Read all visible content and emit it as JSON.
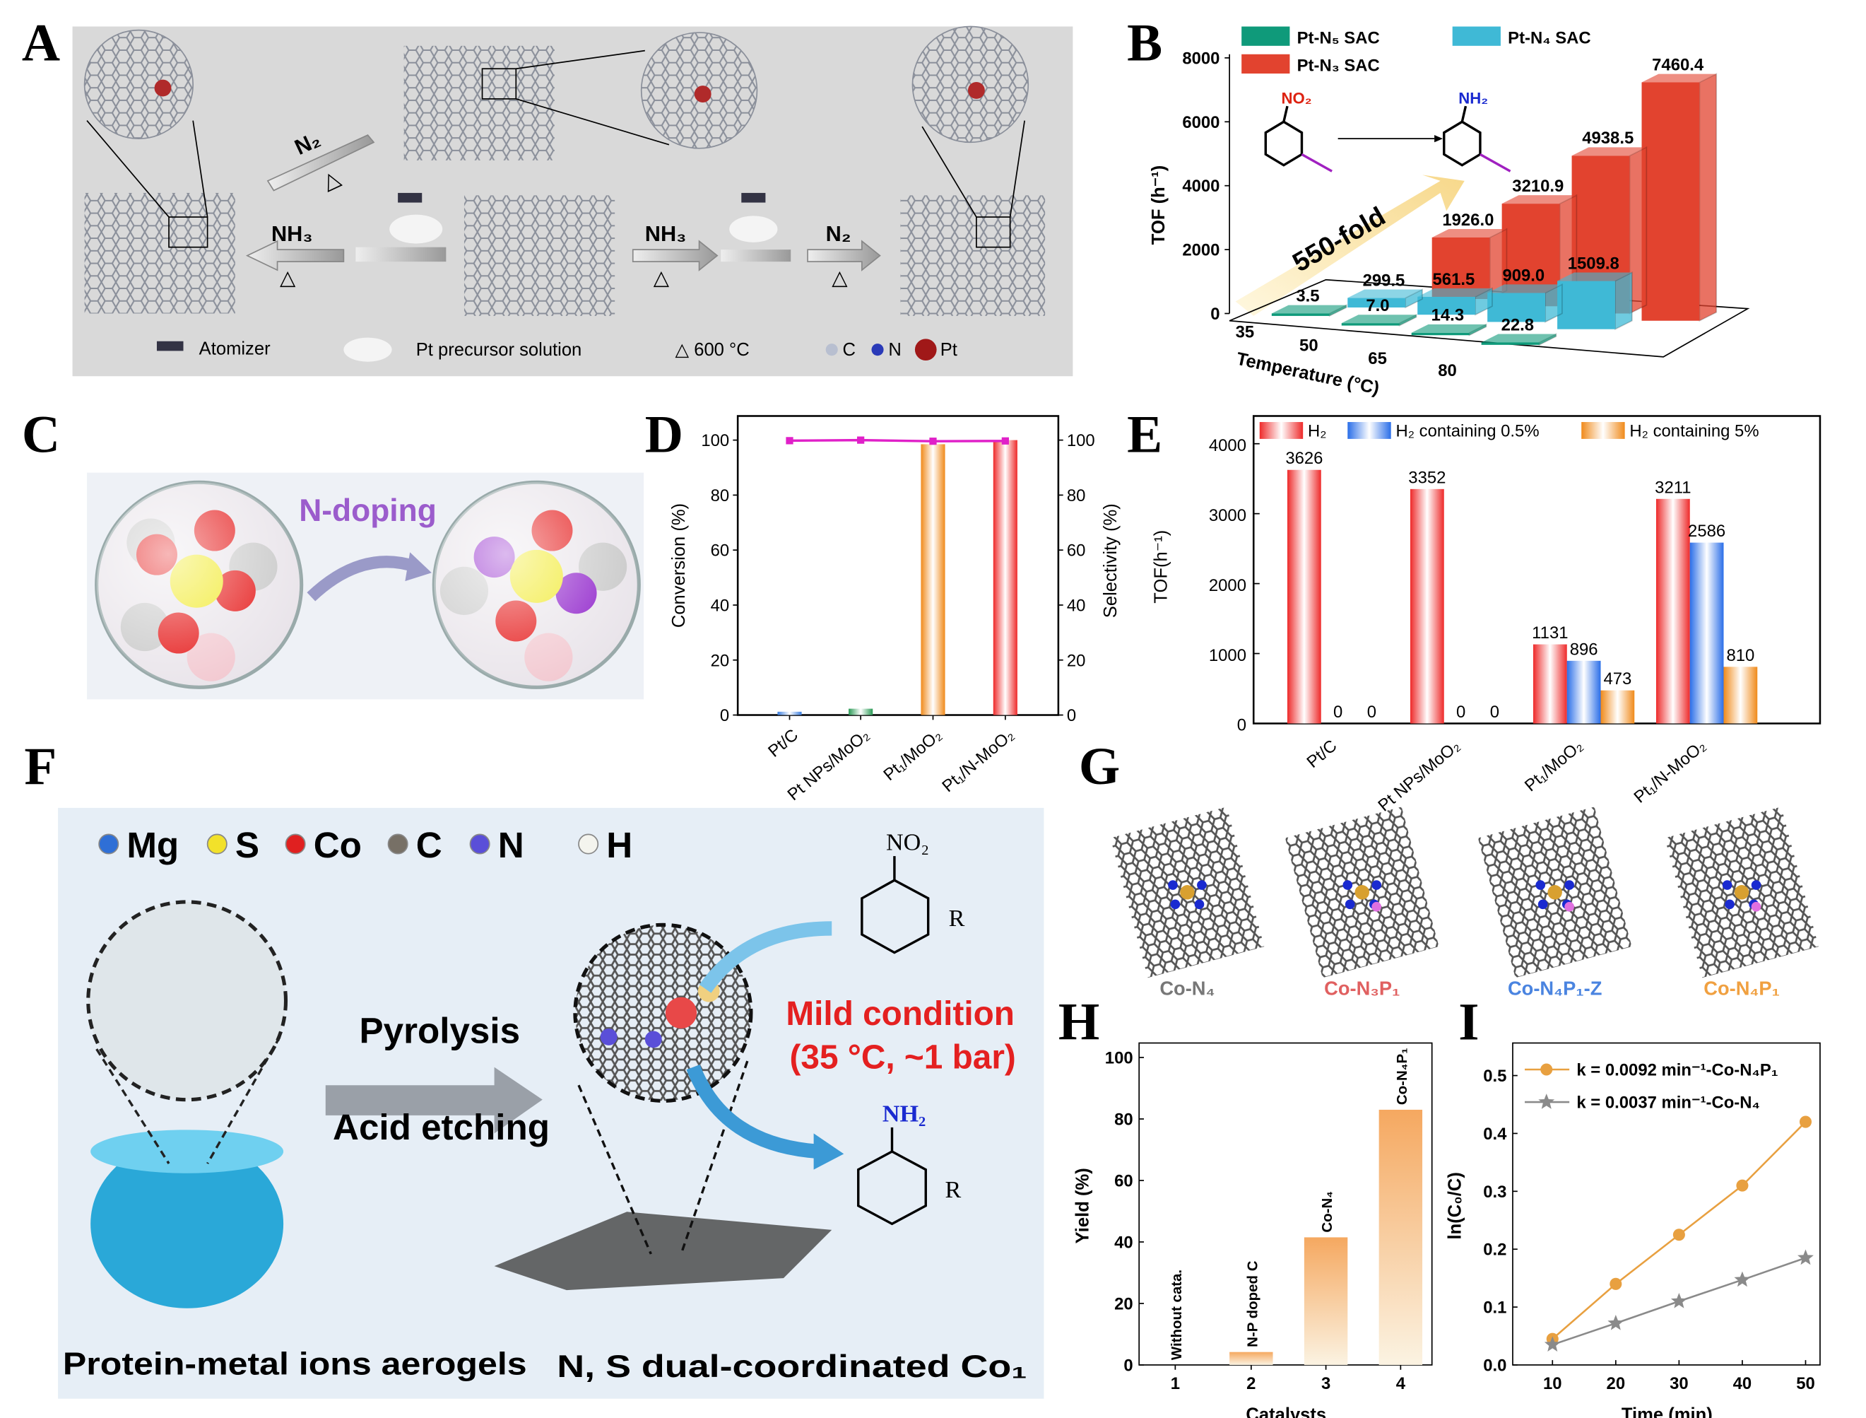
{
  "panel_labels": [
    "A",
    "B",
    "C",
    "D",
    "E",
    "F",
    "G",
    "H",
    "I"
  ],
  "panel_a": {
    "n2_top": "N₂",
    "heat_symbol": "△",
    "nh3_left": "NH₃",
    "nh3_right": "NH₃",
    "n2_right": "N₂",
    "legend_atomizer": "Atomizer",
    "legend_precursor": "Pt precursor solution",
    "legend_temp": "△ 600 °C",
    "legend_c": "C",
    "legend_n": "N",
    "legend_pt": "Pt"
  },
  "panel_b": {
    "reactant_group": "NO₂",
    "product_group": "NH₂",
    "fold_label": "550-fold"
  },
  "panel_c": {
    "arrow_label": "N-doping"
  },
  "panel_f": {
    "legend": [
      "Mg",
      "S",
      "Co",
      "C",
      "N",
      "H"
    ],
    "legend_colors": [
      "#2f6fd6",
      "#f2e12a",
      "#e02020",
      "#777066",
      "#5a4fd8",
      "#f4f4ee"
    ],
    "arrow_top": "Pyrolysis",
    "arrow_bottom": "Acid etching",
    "condition_line1": "Mild condition",
    "condition_line2": "(35 °C, ~1 bar)",
    "reactant_group": "NO₂",
    "product_group": "NH₂",
    "substituent": "R",
    "caption_left": "Protein-metal ions aerogels",
    "caption_right": "N, S dual-coordinated Co₁"
  },
  "panel_g": {
    "structures": [
      {
        "label": "Co-N₄",
        "color": "#777777"
      },
      {
        "label": "Co-N₃P₁",
        "color": "#e06060"
      },
      {
        "label": "Co-N₄P₁-Z",
        "color": "#4a84e0"
      },
      {
        "label": "Co-N₄P₁",
        "color": "#f0a040"
      }
    ]
  },
  "chart_data": [
    {
      "id": "B",
      "type": "bar",
      "style": "3d",
      "title": "",
      "xlabel": "Temperature (°C)",
      "ylabel": "TOF (h⁻¹)",
      "categories": [
        "35",
        "50",
        "65",
        "80"
      ],
      "ylim": [
        0,
        8000
      ],
      "yticks": [
        "0",
        "2000",
        "4000",
        "6000",
        "8000"
      ],
      "series": [
        {
          "name": "Pt-N₅ SAC",
          "color": "#0f9a7a",
          "values": [
            3.5,
            7.0,
            14.3,
            22.8
          ],
          "labels": [
            "3.5",
            "7.0",
            "14.3",
            "22.8"
          ]
        },
        {
          "name": "Pt-N₄ SAC",
          "color": "#3fb9d6",
          "values": [
            299.5,
            561.5,
            909.0,
            1509.8
          ],
          "labels": [
            "299.5",
            "561.5",
            "909.0",
            "1509.8"
          ]
        },
        {
          "name": "Pt-N₃ SAC",
          "color": "#e2432f",
          "values": [
            1926.0,
            3210.9,
            4938.5,
            7460.4
          ],
          "labels": [
            "1926.0",
            "3210.9",
            "4938.5",
            "7460.4"
          ]
        }
      ],
      "legend_placement": "top"
    },
    {
      "id": "D",
      "type": "bar",
      "title": "",
      "xlabel": "",
      "ylabel": "Conversion (%)",
      "y2label": "Selectivity (%)",
      "categories": [
        "Pt/C",
        "Pt NPs/MoO₂",
        "Pt₁/MoO₂",
        "Pt₁/N-MoO₂"
      ],
      "ylim": [
        0,
        110
      ],
      "yticks": [
        "0",
        "20",
        "40",
        "60",
        "80",
        "100"
      ],
      "conversion": [
        1.2,
        2.3,
        98.5,
        100
      ],
      "bar_colors": [
        "#3a7ee0",
        "#2a9a55",
        "#f08a1a",
        "#ee2a2a"
      ],
      "selectivity": [
        99.8,
        100,
        99.6,
        99.7
      ],
      "selectivity_color": "#e020c8"
    },
    {
      "id": "E",
      "type": "bar",
      "title": "",
      "xlabel": "",
      "ylabel": "TOF(h⁻¹)",
      "categories": [
        "Pt/C",
        "Pt NPs/MoO₂",
        "Pt₁/MoO₂",
        "Pt₁/N-MoO₂"
      ],
      "ylim": [
        0,
        4300
      ],
      "yticks": [
        "0",
        "1000",
        "2000",
        "3000",
        "4000"
      ],
      "series": [
        {
          "name": "H₂",
          "color": "#ee2a2a",
          "values": [
            3626,
            3352,
            1131,
            3211
          ]
        },
        {
          "name": "H₂ containing 0.5%",
          "color": "#2a6ee8",
          "values": [
            0,
            0,
            896,
            2586
          ]
        },
        {
          "name": "H₂ containing 5%",
          "color": "#f08a1a",
          "values": [
            0,
            0,
            473,
            810
          ]
        }
      ],
      "legend_placement": "top"
    },
    {
      "id": "H",
      "type": "bar",
      "title": "",
      "xlabel": "Catalysts",
      "ylabel": "Yield (%)",
      "categories": [
        "1",
        "2",
        "3",
        "4"
      ],
      "bar_labels": [
        "Without cata.",
        "N-P doped C",
        "Co-N₄",
        "Co-N₄P₁"
      ],
      "values": [
        0,
        4.2,
        41.5,
        83
      ],
      "ylim": [
        0,
        105
      ],
      "yticks": [
        "0",
        "20",
        "40",
        "60",
        "80",
        "100"
      ],
      "color": "#f5a860"
    },
    {
      "id": "I",
      "type": "line",
      "title": "",
      "xlabel": "Time (min)",
      "ylabel": "ln(C₀/C)",
      "x": [
        10,
        20,
        30,
        40,
        50
      ],
      "xlim": [
        5,
        55
      ],
      "ylim": [
        0,
        0.55
      ],
      "xticks": [
        "10",
        "20",
        "30",
        "40",
        "50"
      ],
      "yticks": [
        "0.0",
        "0.1",
        "0.2",
        "0.3",
        "0.4",
        "0.5"
      ],
      "series": [
        {
          "name": "k = 0.0092 min⁻¹-Co-N₄P₁",
          "color": "#e8a040",
          "marker": "circle",
          "values": [
            0.045,
            0.14,
            0.225,
            0.31,
            0.42
          ]
        },
        {
          "name": "k = 0.0037 min⁻¹-Co-N₄",
          "color": "#8a8a8a",
          "marker": "star",
          "values": [
            0.035,
            0.072,
            0.11,
            0.147,
            0.185
          ]
        }
      ],
      "legend_placement": "top-left"
    }
  ]
}
